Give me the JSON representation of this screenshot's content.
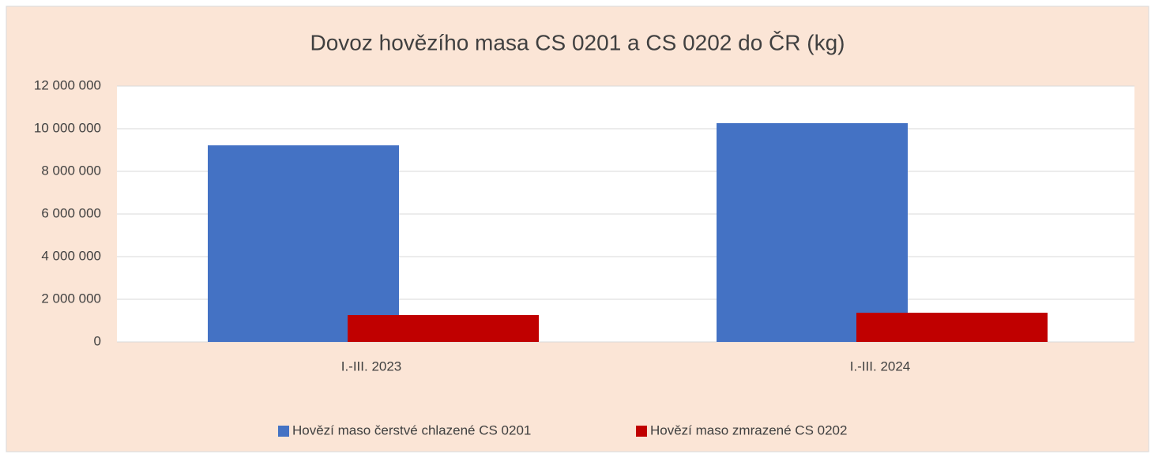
{
  "chart_data": {
    "type": "bar",
    "title": "Dovoz hovězího masa CS 0201 a CS 0202 do ČR (kg)",
    "categories": [
      "I.-III. 2023",
      "I.-III. 2024"
    ],
    "series": [
      {
        "name": "Hovězí maso čerstvé chlazené CS 0201",
        "color": "#4472c4",
        "values": [
          9220000,
          10260000
        ]
      },
      {
        "name": "Hovězí maso zmrazené CS 0202",
        "color": "#c00000",
        "values": [
          1260000,
          1370000
        ]
      }
    ],
    "ylim": [
      0,
      12000000
    ],
    "yticks": [
      0,
      {
        "value": 2000000,
        "label": "2 000 000"
      },
      {
        "value": 4000000,
        "label": "4 000 000"
      },
      {
        "value": 6000000,
        "label": "6 000 000"
      },
      {
        "value": 8000000,
        "label": "8 000 000"
      },
      {
        "value": 10000000,
        "label": "10 000 000"
      },
      {
        "value": 12000000,
        "label": "12 000 000"
      }
    ],
    "grid": true,
    "legend": "bottom"
  }
}
